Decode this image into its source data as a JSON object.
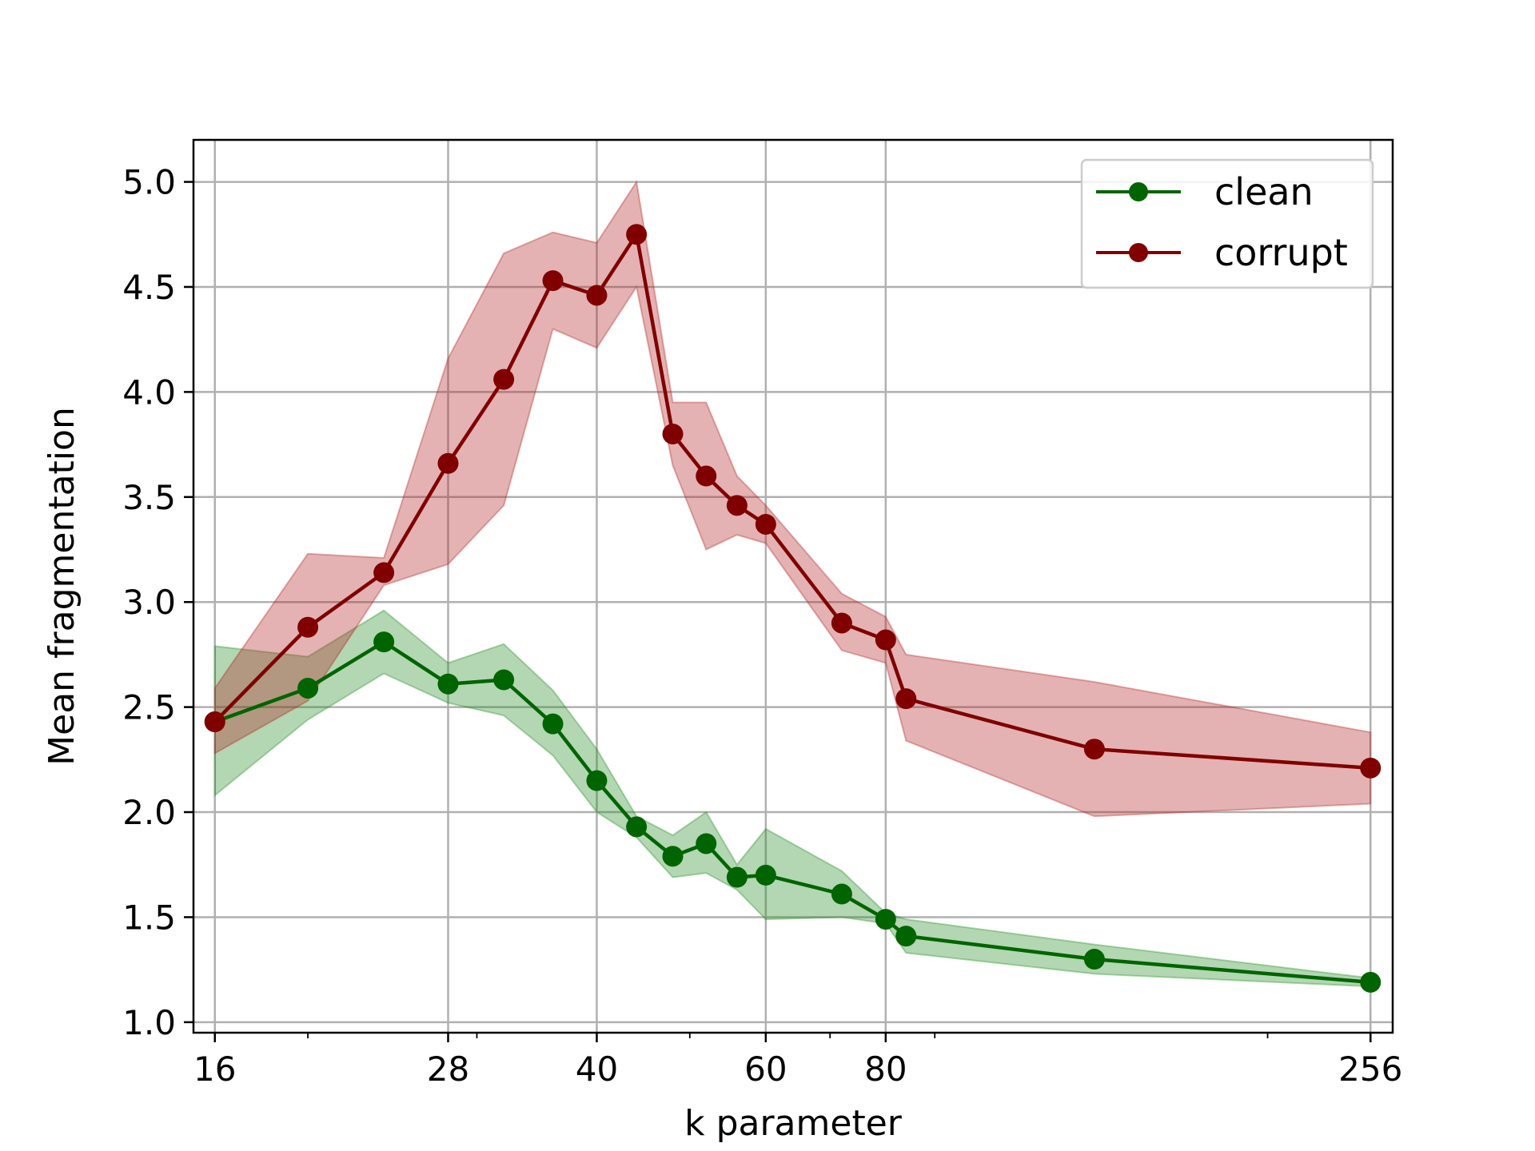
{
  "chart_data": {
    "type": "line",
    "xlabel": "k parameter",
    "ylabel": "Mean fragmentation",
    "xscale": "log",
    "xlim": [
      15.2,
      270
    ],
    "ylim": [
      0.95,
      5.2
    ],
    "grid": true,
    "legend_position": "top-right",
    "x_ticks": [
      16,
      28,
      40,
      60,
      80,
      256
    ],
    "y_ticks": [
      1.0,
      1.5,
      2.0,
      2.5,
      3.0,
      3.5,
      4.0,
      4.5,
      5.0
    ],
    "y_tick_labels": [
      "1.0",
      "1.5",
      "2.0",
      "2.5",
      "3.0",
      "3.5",
      "4.0",
      "4.5",
      "5.0"
    ],
    "x": [
      16,
      20,
      24,
      28,
      32,
      36,
      40,
      44,
      48,
      52,
      56,
      60,
      72,
      80,
      84,
      132,
      256
    ],
    "series": [
      {
        "name": "clean",
        "color": "#006400",
        "band_color": "#228B22",
        "values": [
          2.43,
          2.59,
          2.81,
          2.61,
          2.63,
          2.42,
          2.15,
          1.93,
          1.79,
          1.85,
          1.69,
          1.7,
          1.61,
          1.49,
          1.41,
          1.3,
          1.19
        ],
        "lower": [
          2.08,
          2.44,
          2.66,
          2.52,
          2.46,
          2.27,
          2.0,
          1.88,
          1.69,
          1.71,
          1.63,
          1.49,
          1.5,
          1.47,
          1.33,
          1.23,
          1.17
        ],
        "upper": [
          2.79,
          2.74,
          2.96,
          2.71,
          2.8,
          2.58,
          2.3,
          1.98,
          1.89,
          2.0,
          1.75,
          1.92,
          1.72,
          1.52,
          1.49,
          1.37,
          1.21
        ]
      },
      {
        "name": "corrupt",
        "color": "#800000",
        "band_color": "#B22222",
        "values": [
          2.43,
          2.88,
          3.14,
          3.66,
          4.06,
          4.53,
          4.46,
          4.75,
          3.8,
          3.6,
          3.46,
          3.37,
          2.9,
          2.82,
          2.54,
          2.3,
          2.21
        ],
        "lower": [
          2.28,
          2.53,
          3.08,
          3.18,
          3.46,
          4.3,
          4.21,
          4.5,
          3.65,
          3.25,
          3.32,
          3.28,
          2.77,
          2.71,
          2.34,
          1.98,
          2.04
        ],
        "upper": [
          2.59,
          3.23,
          3.21,
          4.16,
          4.66,
          4.76,
          4.71,
          5.0,
          3.95,
          3.95,
          3.6,
          3.46,
          3.04,
          2.93,
          2.75,
          2.62,
          2.38
        ]
      }
    ]
  }
}
